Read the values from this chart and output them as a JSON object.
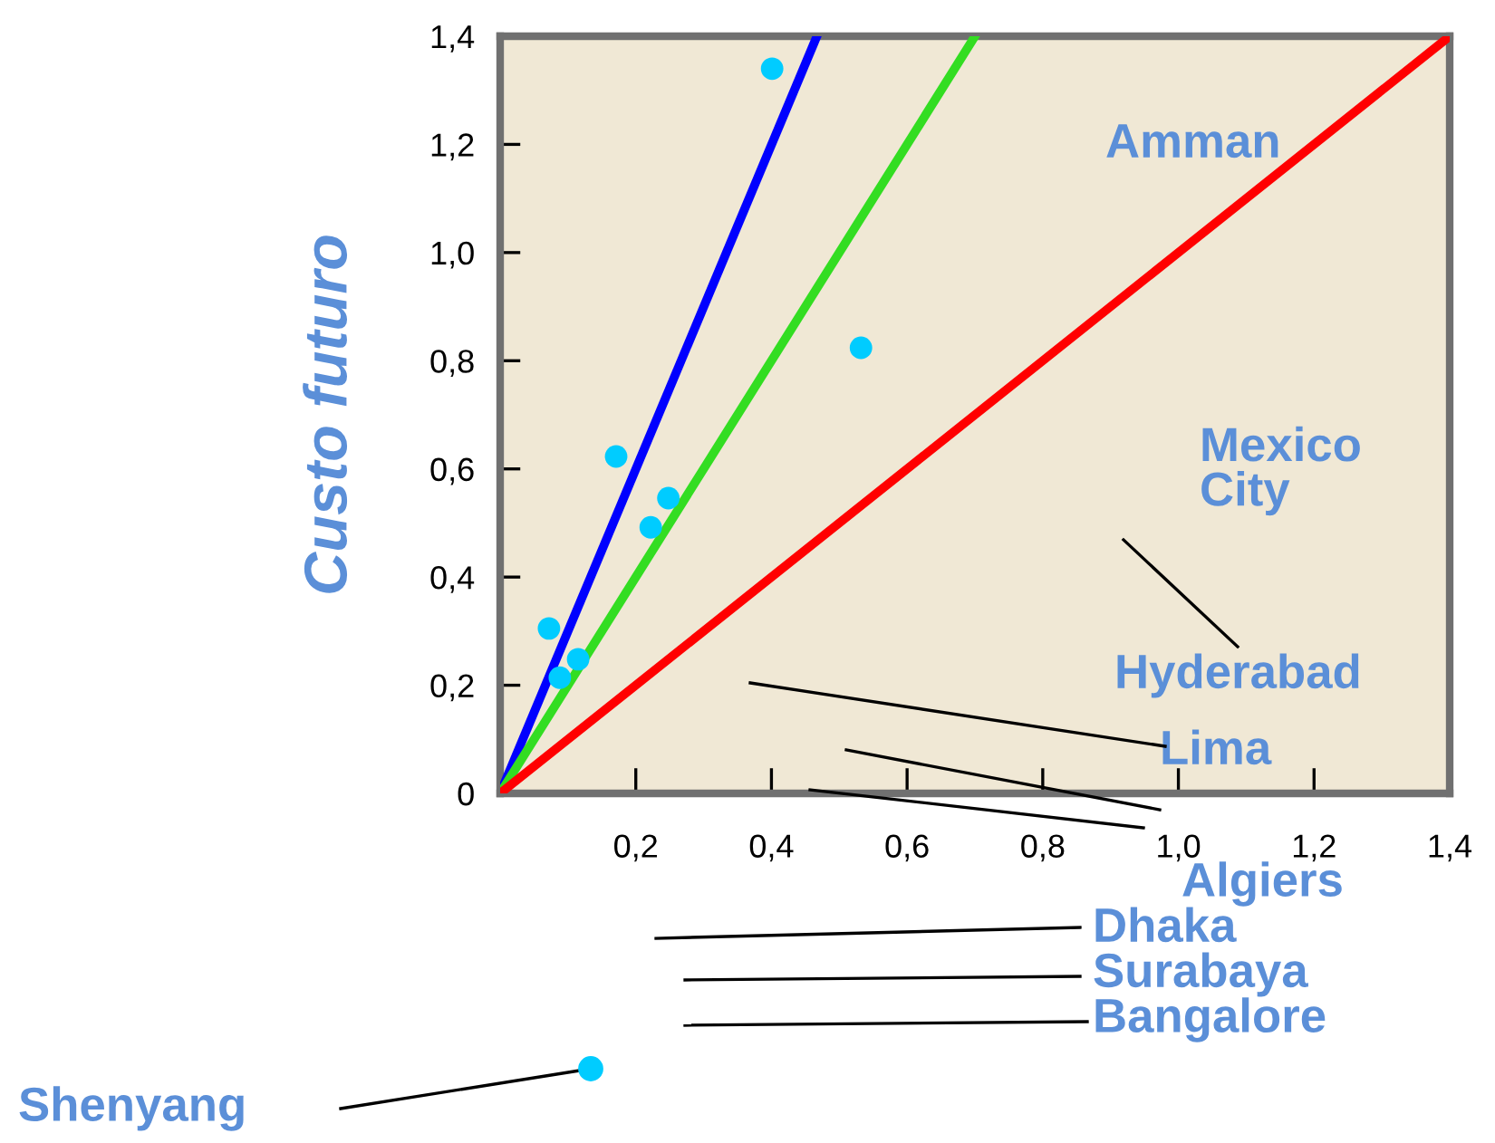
{
  "chart_data": {
    "type": "scatter",
    "ylabel": "Custo futuro",
    "xlim": [
      0,
      1.4
    ],
    "ylim": [
      0,
      1.4
    ],
    "xticks": [
      {
        "value": 0.2,
        "label": "0,2"
      },
      {
        "value": 0.4,
        "label": "0,4"
      },
      {
        "value": 0.6,
        "label": "0,6"
      },
      {
        "value": 0.8,
        "label": "0,8"
      },
      {
        "value": 1.0,
        "label": "1,0"
      },
      {
        "value": 1.2,
        "label": "1,2"
      },
      {
        "value": 1.4,
        "label": "1,4"
      }
    ],
    "yticks": [
      0,
      {
        "value": 0.2,
        "label": "0,2"
      },
      {
        "value": 0.4,
        "label": "0,4"
      },
      {
        "value": 0.6,
        "label": "0,6"
      },
      {
        "value": 0.8,
        "label": "0,8"
      },
      {
        "value": 1.0,
        "label": "1,0"
      },
      {
        "value": 1.2,
        "label": "1,2"
      },
      {
        "value": 1.4,
        "label": "1,4"
      }
    ],
    "grid": false,
    "legend": false,
    "marker": "circle",
    "series": [
      {
        "type": "scatter",
        "color": "#00ccff",
        "x": [
          0.401,
          0.532,
          0.171,
          0.248,
          0.222,
          0.072,
          0.115,
          0.088
        ],
        "values": [
          1.34,
          0.824,
          0.623,
          0.546,
          0.492,
          0.305,
          0.248,
          0.214
        ]
      },
      {
        "type": "line",
        "color": "#0000ff",
        "x": [
          0,
          0.467
        ],
        "values": [
          0,
          1.4
        ],
        "marker": "none"
      },
      {
        "type": "line",
        "color": "#33dd22",
        "x": [
          0,
          0.7
        ],
        "values": [
          0,
          1.4
        ],
        "marker": "none"
      },
      {
        "type": "line",
        "color": "#ff0000",
        "x": [
          0,
          1.4
        ],
        "values": [
          0,
          1.4
        ],
        "marker": "none"
      }
    ],
    "annotations": [
      "Amman",
      "Mexico City",
      "Hyderabad",
      "Lima",
      "Algiers",
      "Dhaka",
      "Surabaya",
      "Bangalore",
      "Shenyang"
    ]
  }
}
